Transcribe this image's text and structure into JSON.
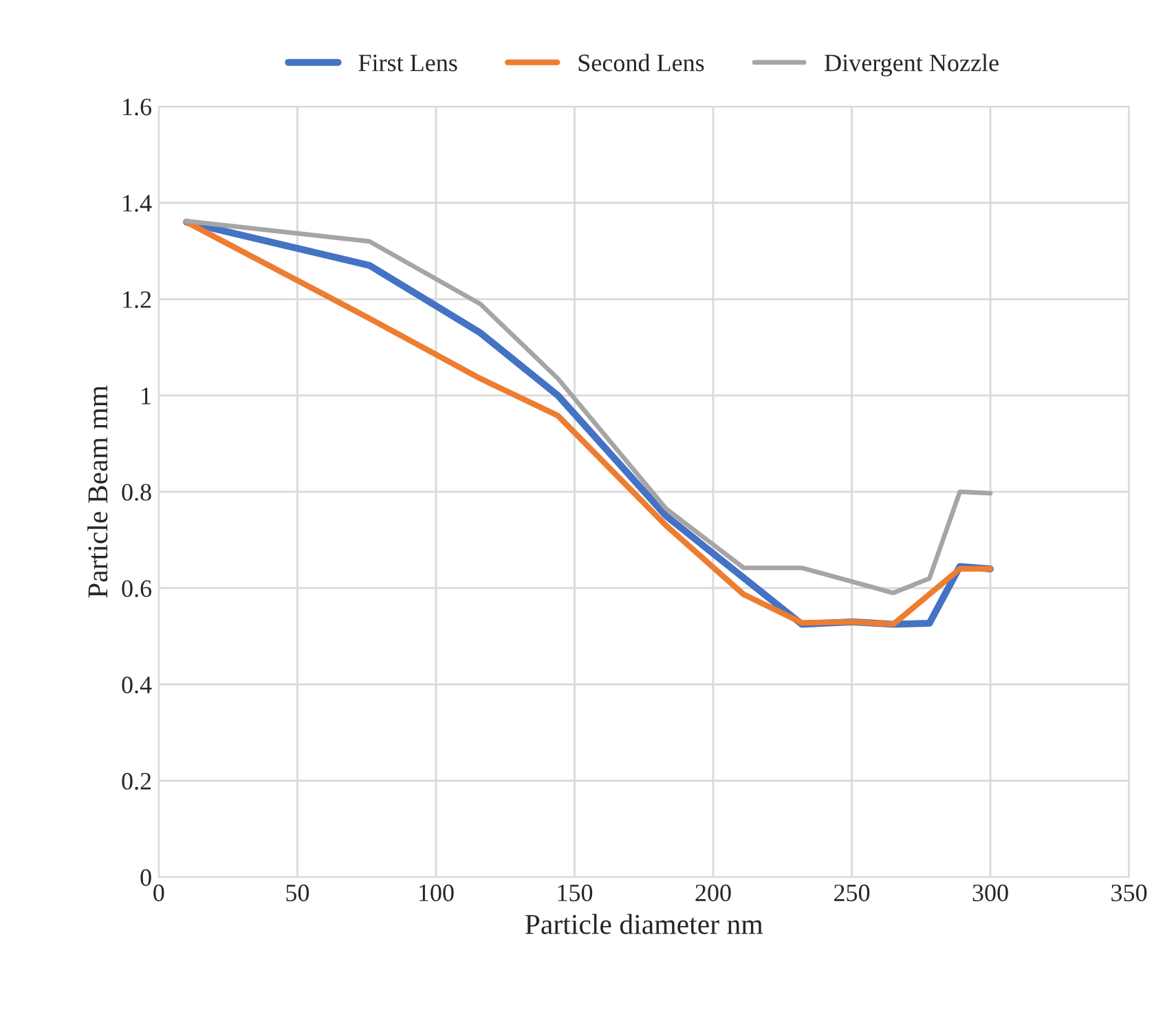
{
  "chart_data": {
    "type": "line",
    "xlabel": "Particle diameter nm",
    "ylabel": "Particle Beam mm",
    "xlim": [
      0,
      350
    ],
    "xticks": [
      0,
      50,
      100,
      150,
      200,
      250,
      300,
      350
    ],
    "ylim": [
      0,
      1.6
    ],
    "yticks": [
      0,
      0.2,
      0.4,
      0.6,
      0.8,
      1,
      1.2,
      1.4,
      1.6
    ],
    "grid": true,
    "legend": "top",
    "marker": "none",
    "line_style": "solid",
    "series": [
      {
        "name": "First Lens",
        "color": "#4472c4",
        "x": [
          10,
          76,
          116,
          144,
          183,
          232,
          250,
          265,
          278,
          289,
          300
        ],
        "values": [
          1.36,
          1.27,
          1.13,
          1.0,
          0.75,
          0.525,
          0.53,
          0.525,
          0.527,
          0.645,
          0.64
        ]
      },
      {
        "name": "Second Lens",
        "color": "#ed7d31",
        "x": [
          10,
          76,
          116,
          144,
          183,
          211,
          232,
          250,
          265,
          289,
          300
        ],
        "values": [
          1.36,
          1.16,
          1.035,
          0.958,
          0.73,
          0.587,
          0.528,
          0.53,
          0.525,
          0.64,
          0.64
        ]
      },
      {
        "name": "Divergent Nozzle",
        "color": "#a5a5a5",
        "x": [
          10,
          76,
          116,
          144,
          183,
          211,
          232,
          265,
          278,
          289,
          300
        ],
        "values": [
          1.362,
          1.32,
          1.19,
          1.035,
          0.765,
          0.642,
          0.642,
          0.59,
          0.62,
          0.8,
          0.797
        ]
      }
    ]
  }
}
